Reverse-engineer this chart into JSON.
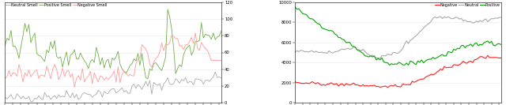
{
  "left_legend": [
    "Neutral Smell",
    "Positive Smell",
    "Negative Smell"
  ],
  "left_colors": [
    "#aaaaaa",
    "#70ad47",
    "#ff9999"
  ],
  "right_legend": [
    "Negative",
    "Neutral",
    "Positive"
  ],
  "right_colors": [
    "#ff2020",
    "#aaaaaa",
    "#00aa00"
  ],
  "left_ylim": [
    0,
    120
  ],
  "left_yticks": [
    0,
    20,
    40,
    60,
    80,
    100,
    120
  ],
  "right_ylim": [
    0,
    10000
  ],
  "right_yticks": [
    0,
    2000,
    4000,
    6000,
    8000,
    10000
  ],
  "background": "#ffffff",
  "grid_color": "#e8e8e8"
}
